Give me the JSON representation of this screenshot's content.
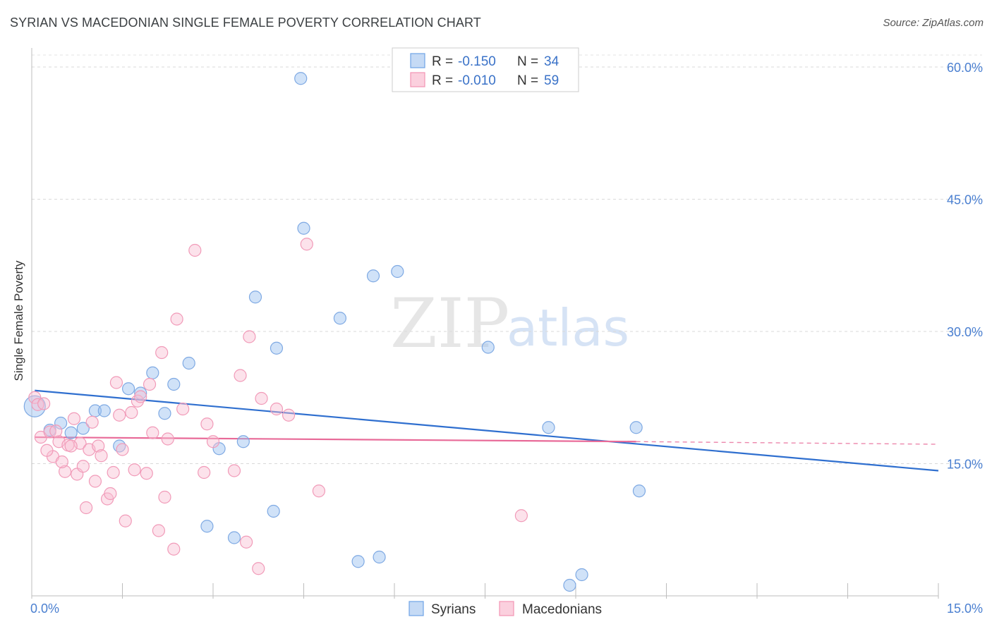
{
  "header": {
    "title": "SYRIAN VS MACEDONIAN SINGLE FEMALE POVERTY CORRELATION CHART",
    "source": "Source: ZipAtlas.com"
  },
  "watermark": {
    "zip": "ZIP",
    "atlas": "atlas"
  },
  "legend": {
    "rows": [
      {
        "r_label": "R =",
        "r_value": "-0.150",
        "n_label": "N =",
        "n_value": "34",
        "color": "#6fa3e6"
      },
      {
        "r_label": "R =",
        "r_value": "-0.010",
        "n_label": "N =",
        "n_value": "59",
        "color": "#f294b4"
      }
    ]
  },
  "bottom_legend": {
    "series1": "Syrians",
    "series2": "Macedonians"
  },
  "chart_data": {
    "type": "scatter",
    "title": "SYRIAN VS MACEDONIAN SINGLE FEMALE POVERTY CORRELATION CHART",
    "xlabel": "",
    "ylabel": "Single Female Poverty",
    "xlim": [
      0,
      15
    ],
    "ylim": [
      0,
      60
    ],
    "x_tick_labels": [
      "0.0%",
      "15.0%"
    ],
    "y_tick_values": [
      15,
      30,
      45,
      60
    ],
    "y_tick_labels": [
      "15.0%",
      "30.0%",
      "45.0%",
      "60.0%"
    ],
    "grid": true,
    "legend_position": "top-center",
    "series": [
      {
        "name": "Syrians",
        "color": "#6fa3e6",
        "points": [
          [
            0.05,
            21.5
          ],
          [
            0.3,
            18.8
          ],
          [
            0.48,
            19.6
          ],
          [
            0.65,
            18.5
          ],
          [
            0.85,
            19.0
          ],
          [
            1.05,
            21.0
          ],
          [
            1.2,
            21.0
          ],
          [
            1.45,
            17.0
          ],
          [
            1.6,
            23.5
          ],
          [
            1.8,
            23.0
          ],
          [
            2.0,
            25.3
          ],
          [
            2.2,
            20.7
          ],
          [
            2.35,
            24.0
          ],
          [
            2.6,
            26.4
          ],
          [
            3.1,
            16.7
          ],
          [
            3.5,
            17.5
          ],
          [
            3.7,
            33.9
          ],
          [
            4.0,
            9.6
          ],
          [
            4.05,
            28.1
          ],
          [
            4.5,
            41.7
          ],
          [
            5.1,
            31.5
          ],
          [
            4.45,
            58.7
          ],
          [
            5.4,
            3.9
          ],
          [
            5.75,
            4.4
          ],
          [
            5.65,
            36.3
          ],
          [
            6.05,
            36.8
          ],
          [
            7.55,
            28.2
          ],
          [
            8.55,
            19.1
          ],
          [
            8.9,
            1.2
          ],
          [
            9.1,
            2.4
          ],
          [
            10.0,
            19.1
          ],
          [
            10.05,
            11.9
          ],
          [
            2.9,
            7.9
          ],
          [
            3.35,
            6.6
          ]
        ],
        "trend": {
          "x": [
            0.05,
            15
          ],
          "y": [
            23.3,
            14.2
          ]
        }
      },
      {
        "name": "Macedonians",
        "color": "#f294b4",
        "points": [
          [
            0.05,
            22.5
          ],
          [
            0.1,
            21.7
          ],
          [
            0.15,
            18.0
          ],
          [
            0.2,
            21.8
          ],
          [
            0.3,
            18.6
          ],
          [
            0.35,
            15.8
          ],
          [
            0.45,
            17.5
          ],
          [
            0.55,
            14.1
          ],
          [
            0.6,
            17.1
          ],
          [
            0.7,
            20.1
          ],
          [
            0.75,
            13.8
          ],
          [
            0.8,
            17.3
          ],
          [
            0.95,
            16.6
          ],
          [
            1.0,
            19.7
          ],
          [
            1.1,
            17.0
          ],
          [
            1.15,
            15.9
          ],
          [
            1.25,
            11.0
          ],
          [
            1.3,
            11.6
          ],
          [
            1.4,
            24.2
          ],
          [
            1.5,
            16.6
          ],
          [
            1.55,
            8.5
          ],
          [
            1.65,
            20.8
          ],
          [
            1.7,
            14.3
          ],
          [
            1.75,
            22.1
          ],
          [
            1.8,
            22.6
          ],
          [
            1.9,
            13.9
          ],
          [
            1.95,
            24.0
          ],
          [
            2.0,
            18.5
          ],
          [
            2.1,
            7.4
          ],
          [
            2.15,
            27.6
          ],
          [
            2.2,
            11.2
          ],
          [
            2.25,
            17.8
          ],
          [
            2.35,
            5.3
          ],
          [
            2.4,
            31.4
          ],
          [
            2.5,
            21.2
          ],
          [
            2.7,
            39.2
          ],
          [
            2.85,
            14.0
          ],
          [
            2.9,
            19.5
          ],
          [
            3.0,
            17.5
          ],
          [
            3.35,
            14.2
          ],
          [
            3.45,
            25.0
          ],
          [
            3.55,
            6.1
          ],
          [
            3.6,
            29.4
          ],
          [
            3.75,
            3.1
          ],
          [
            3.8,
            22.4
          ],
          [
            4.05,
            21.2
          ],
          [
            4.25,
            20.5
          ],
          [
            4.55,
            39.9
          ],
          [
            4.75,
            11.9
          ],
          [
            0.9,
            10.0
          ],
          [
            0.85,
            14.7
          ],
          [
            0.65,
            17.0
          ],
          [
            1.45,
            20.5
          ],
          [
            1.35,
            14.0
          ],
          [
            8.1,
            9.1
          ],
          [
            0.4,
            18.7
          ],
          [
            0.25,
            16.5
          ],
          [
            0.5,
            15.2
          ],
          [
            1.05,
            13.0
          ]
        ],
        "trend": {
          "x": [
            0.05,
            10.0
          ],
          "y": [
            18.0,
            17.5
          ]
        },
        "trend_dashed": {
          "x": [
            10.0,
            15
          ],
          "y": [
            17.5,
            17.2
          ]
        }
      }
    ]
  }
}
